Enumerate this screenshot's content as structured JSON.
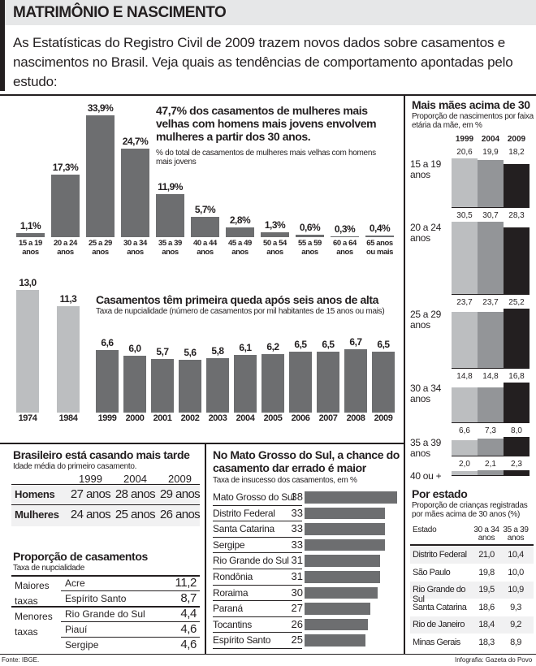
{
  "header": {
    "title": "MATRIMÔNIO E NASCIMENTO",
    "intro": "As Estatísticas do Registro Civil de 2009 trazem novos dados sobre casamentos e nascimentos no Brasil. Veja quais as tendências de comportamento apontadas pelo estudo:"
  },
  "chart_data": [
    {
      "type": "bar",
      "title": "47,7% dos casamentos de mulheres mais velhas com homens mais jovens envolvem mulheres a partir dos 30 anos.",
      "subtitle": "% do total de casamentos de mulheres mais velhas com homens mais jovens",
      "categories": [
        "15 a 19 anos",
        "20 a 24 anos",
        "25 a 29 anos",
        "30 a 34 anos",
        "35 a 39 anos",
        "40 a 44 anos",
        "45 a 49 anos",
        "50 a 54 anos",
        "55 a 59 anos",
        "60 a 64 anos",
        "65 anos ou mais"
      ],
      "values": [
        1.1,
        17.3,
        33.9,
        24.7,
        11.9,
        5.7,
        2.8,
        1.3,
        0.6,
        0.3,
        0.4
      ],
      "value_labels": [
        "1,1%",
        "17,3%",
        "33,9%",
        "24,7%",
        "11,9%",
        "5,7%",
        "2,8%",
        "1,3%",
        "0,6%",
        "0,3%",
        "0,4%"
      ],
      "color": "#6d6e70"
    },
    {
      "type": "bar",
      "title": "Casamentos têm primeira queda após seis anos de alta",
      "subtitle": "Taxa de nupcialidade (número de casamentos por mil habitantes de 15 anos ou mais)",
      "categories": [
        "1974",
        "1984",
        "1999",
        "2000",
        "2001",
        "2002",
        "2003",
        "2004",
        "2005",
        "2006",
        "2007",
        "2008",
        "2009"
      ],
      "values": [
        13.0,
        11.3,
        6.6,
        6.0,
        5.7,
        5.6,
        5.8,
        6.1,
        6.2,
        6.5,
        6.5,
        6.7,
        6.5
      ],
      "value_labels": [
        "13,0",
        "11,3",
        "6,6",
        "6,0",
        "5,7",
        "5,6",
        "5,8",
        "6,1",
        "6,2",
        "6,5",
        "6,5",
        "6,7",
        "6,5"
      ],
      "colors": [
        "#bcbec0",
        "#bcbec0",
        "#6d6e70",
        "#6d6e70",
        "#6d6e70",
        "#6d6e70",
        "#6d6e70",
        "#6d6e70",
        "#6d6e70",
        "#6d6e70",
        "#6d6e70",
        "#6d6e70",
        "#6d6e70"
      ]
    },
    {
      "type": "grouped_bar",
      "title": "Mais mães acima de 30",
      "subtitle": "Proporção de nascimentos por faixa etária da mãe, em %",
      "categories": [
        "15 a 19 anos",
        "20 a 24 anos",
        "25 a 29 anos",
        "30 a 34 anos",
        "35 a 39 anos",
        "40 ou +"
      ],
      "series": [
        {
          "name": "1999",
          "color": "#bcbec0",
          "values": [
            20.6,
            30.5,
            23.7,
            14.8,
            6.6,
            2.0
          ],
          "value_labels": [
            "20,6",
            "30,5",
            "23,7",
            "14,8",
            "6,6",
            "2,0"
          ]
        },
        {
          "name": "2004",
          "color": "#939598",
          "values": [
            19.9,
            30.7,
            23.7,
            14.8,
            7.3,
            2.1
          ],
          "value_labels": [
            "19,9",
            "30,7",
            "23,7",
            "14,8",
            "7,3",
            "2,1"
          ]
        },
        {
          "name": "2009",
          "color": "#231f20",
          "values": [
            18.2,
            28.3,
            25.2,
            16.8,
            8.0,
            2.3
          ],
          "value_labels": [
            "18,2",
            "28,3",
            "25,2",
            "16,8",
            "8,0",
            "2,3"
          ]
        }
      ]
    },
    {
      "type": "hbar",
      "title": "No Mato Grosso do Sul, a chance do casamento dar errado é maior",
      "subtitle": "Taxa de insucesso dos casamentos, em %",
      "categories": [
        "Mato Grosso do Sul",
        "Distrito Federal",
        "Santa Catarina",
        "Sergipe",
        "Rio Grande do Sul",
        "Rondônia",
        "Roraima",
        "Paraná",
        "Tocantins",
        "Espírito Santo"
      ],
      "values": [
        38,
        33,
        33,
        33,
        31,
        31,
        30,
        27,
        26,
        25
      ],
      "color": "#6d6e70"
    }
  ],
  "tables": [
    {
      "title": "Brasileiro está casando mais tarde",
      "subtitle": "Idade média do primeiro casamento.",
      "columns": [
        "1999",
        "2004",
        "2009"
      ],
      "rows": [
        {
          "label": "Homens",
          "cells": [
            "27 anos",
            "28 anos",
            "29 anos"
          ]
        },
        {
          "label": "Mulheres",
          "cells": [
            "24 anos",
            "25 anos",
            "26 anos"
          ]
        }
      ]
    },
    {
      "title": "Proporção de casamentos",
      "subtitle": "Taxa de nupcialidade",
      "groups": [
        {
          "label": "Maiores taxas",
          "rows": [
            {
              "name": "Acre",
              "value": "11,2"
            },
            {
              "name": "Espírito Santo",
              "value": "8,7"
            }
          ]
        },
        {
          "label": "Menores taxas",
          "rows": [
            {
              "name": "Rio Grande do Sul",
              "value": "4,4"
            },
            {
              "name": "Piauí",
              "value": "4,6"
            },
            {
              "name": "Sergipe",
              "value": "4,6"
            }
          ]
        }
      ]
    },
    {
      "title": "Por estado",
      "subtitle": "Proporção de crianças registradas por mães acima de 30 anos (%)",
      "columns": [
        "Estado",
        "30 a 34 anos",
        "35 a 39 anos"
      ],
      "rows": [
        [
          "Distrito Federal",
          "21,0",
          "10,4"
        ],
        [
          "São Paulo",
          "19,8",
          "10,0"
        ],
        [
          "Rio Grande do Sul",
          "19,5",
          "10,9"
        ],
        [
          "Santa Catarina",
          "18,6",
          "9,3"
        ],
        [
          "Rio de Janeiro",
          "18,4",
          "9,2"
        ],
        [
          "Minas Gerais",
          "18,3",
          "8,9"
        ]
      ]
    }
  ],
  "footer": {
    "source": "Fonte: IBGE.",
    "credit": "Infografia: Gazeta do Povo"
  }
}
